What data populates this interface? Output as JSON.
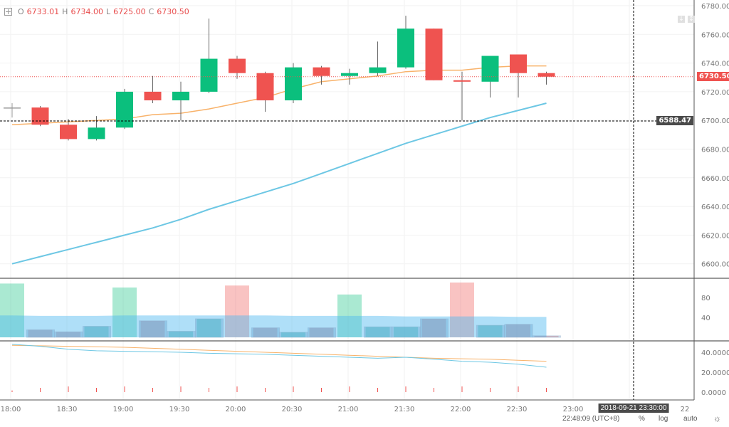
{
  "legend": {
    "o_label": "O",
    "o": "6733.01",
    "h_label": "H",
    "h": "6734.00",
    "l_label": "L",
    "l": "6725.00",
    "c_label": "C",
    "c": "6730.50"
  },
  "last_price_tag": "6730.50",
  "crosshair_price_tag": "6588.47",
  "crosshair_time_tag": "2018-09-21 23:30:00",
  "footer": {
    "clock": "22:48:09 (UTC+8)",
    "percent": "%",
    "log": "log",
    "auto": "auto"
  },
  "colors": {
    "up": "#26a69a",
    "up_fill": "#0bbf7d",
    "down": "#ef5350",
    "ma_fast": "#f8b26a",
    "ma_slow": "#6dc7e4"
  },
  "chart_data": {
    "type": "candlestick",
    "x": [
      "18:00",
      "18:15",
      "18:30",
      "18:45",
      "19:00",
      "19:15",
      "19:30",
      "19:45",
      "20:00",
      "20:15",
      "20:30",
      "20:45",
      "21:00",
      "21:15",
      "21:30",
      "21:45",
      "22:00",
      "22:15",
      "22:30",
      "22:45"
    ],
    "ohlc": [
      [
        6709,
        6712,
        6702,
        6709
      ],
      [
        6709,
        6710,
        6696,
        6697
      ],
      [
        6697,
        6701,
        6686,
        6687
      ],
      [
        6687,
        6703,
        6686,
        6695
      ],
      [
        6695,
        6722,
        6694,
        6720
      ],
      [
        6720,
        6731,
        6712,
        6714
      ],
      [
        6714,
        6727,
        6700,
        6720
      ],
      [
        6720,
        6771,
        6719,
        6743
      ],
      [
        6743,
        6745,
        6729,
        6733
      ],
      [
        6733,
        6734,
        6706,
        6714
      ],
      [
        6714,
        6740,
        6712,
        6737
      ],
      [
        6737,
        6738,
        6725,
        6731
      ],
      [
        6731,
        6736,
        6725,
        6733
      ],
      [
        6733,
        6755,
        6731,
        6737
      ],
      [
        6737,
        6773,
        6736,
        6764
      ],
      [
        6764,
        6764,
        6728,
        6728
      ],
      [
        6728,
        6734,
        6700,
        6727
      ],
      [
        6727,
        6745,
        6716,
        6745
      ],
      [
        6746,
        6746,
        6716,
        6733
      ],
      [
        6733.01,
        6734,
        6725,
        6730.5
      ]
    ],
    "ma_fast": [
      6697,
      6698,
      6699,
      6700,
      6701,
      6704,
      6705,
      6708,
      6712,
      6716,
      6722,
      6727,
      6729,
      6731,
      6734,
      6735,
      6735,
      6737,
      6738,
      6738
    ],
    "ma_slow": [
      6600,
      6605,
      6610,
      6615,
      6620,
      6625,
      6631,
      6638,
      6644,
      6650,
      6656,
      6663,
      6670,
      6677,
      6684,
      6690,
      6696,
      6702,
      6707,
      6712
    ],
    "price_ticks": [
      6780,
      6760,
      6740,
      6720,
      6700,
      6680,
      6660,
      6640,
      6620,
      6600
    ],
    "price_tick_labels": [
      "6780.00",
      "6760.00",
      "6740.00",
      "6720.00",
      "6700.00",
      "6680.00",
      "6660.00",
      "6640.00",
      "6620.00",
      "6600.00"
    ],
    "time_labels": [
      "18:00",
      "18:30",
      "19:00",
      "19:30",
      "20:00",
      "20:30",
      "21:00",
      "21:30",
      "22:00",
      "22:30",
      "23:00",
      "22"
    ],
    "volume": [
      108,
      15,
      11,
      22,
      100,
      33,
      12,
      37,
      104,
      19,
      10,
      19,
      86,
      21,
      21,
      37,
      110,
      24,
      26,
      3
    ],
    "volume_ma": [
      44,
      43,
      43,
      43,
      44,
      44,
      44,
      44,
      44,
      44,
      43,
      43,
      43,
      43,
      42,
      42,
      42,
      42,
      41,
      41
    ],
    "volume_ticks": [
      "80",
      "40"
    ],
    "osc_fast": [
      47,
      46.5,
      46,
      45.5,
      45,
      44,
      43,
      42,
      41,
      40,
      39,
      38,
      37,
      36,
      35,
      34,
      33.5,
      33,
      32,
      31
    ],
    "osc_slow": [
      48,
      46,
      43,
      41.5,
      41,
      40.5,
      40,
      39,
      38.5,
      38,
      37,
      36,
      35,
      34,
      35,
      33,
      31,
      30,
      28,
      25
    ],
    "osc_ticks": [
      "40.0000",
      "20.0000",
      "0.0000"
    ]
  }
}
